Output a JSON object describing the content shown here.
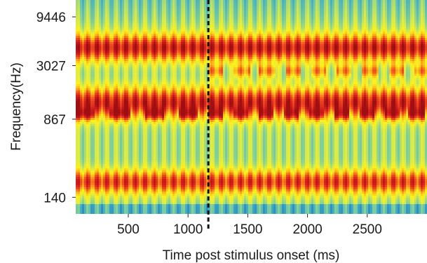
{
  "chart_data": {
    "type": "heatmap",
    "title": "",
    "xlabel": "Time post stimulus onset (ms)",
    "ylabel": "Frequency(Hz)",
    "xlim": [
      60,
      3000
    ],
    "y_scale": "log",
    "ylim": [
      95,
      14000
    ],
    "x_ticks": [
      {
        "value": 500,
        "label": "500"
      },
      {
        "value": 1000,
        "label": "1000"
      },
      {
        "value": 1500,
        "label": "1500"
      },
      {
        "value": 2000,
        "label": "2000"
      },
      {
        "value": 2500,
        "label": "2500"
      }
    ],
    "y_ticks": [
      {
        "value": 140,
        "label": "140"
      },
      {
        "value": 867,
        "label": "867"
      },
      {
        "value": 3027,
        "label": "3027"
      },
      {
        "value": 9446,
        "label": "9446"
      }
    ],
    "change_marker": {
      "x": 1170,
      "style": "dashed"
    },
    "colormap": [
      "#1e5faa",
      "#3aa7c9",
      "#7fcf9a",
      "#d7ea4a",
      "#fff21a",
      "#ffb31a",
      "#f2521e",
      "#d41e1e",
      "#9e0f12"
    ],
    "spectral_bands": [
      {
        "freq_hz": 4600,
        "intensity": 1.0,
        "bandwidth_oct": 0.45
      },
      {
        "freq_hz": 1270,
        "intensity": 1.0,
        "bandwidth_oct": 0.5
      },
      {
        "freq_hz": 200,
        "intensity": 0.85,
        "bandwidth_oct": 0.4
      }
    ],
    "alternating_patches": [
      {
        "freq_hz": 970,
        "x_start": 60,
        "x_end": 1170,
        "period_ms": 290,
        "duty": 0.55,
        "intensity": 1.0
      },
      {
        "freq_hz": 970,
        "x_start": 1170,
        "x_end": 3000,
        "period_ms": 210,
        "duty": 0.6,
        "intensity": 0.95
      },
      {
        "freq_hz": 2650,
        "x_start": 1170,
        "x_end": 3000,
        "period_ms": 215,
        "duty": 0.6,
        "intensity": 0.95
      }
    ],
    "striation_period_ms": 80
  }
}
